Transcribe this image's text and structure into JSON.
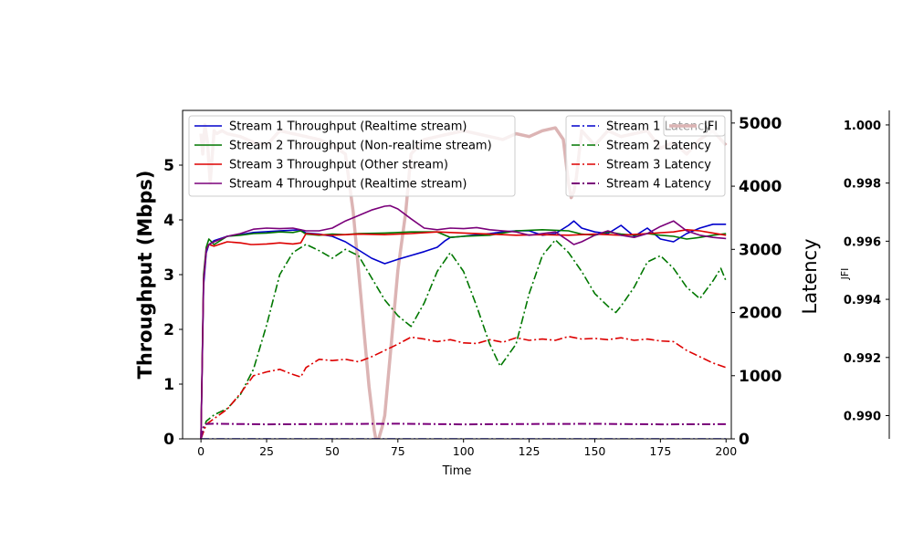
{
  "chart_data": {
    "type": "line",
    "xlabel": "Time",
    "xlim": [
      -7,
      202
    ],
    "xticks": [
      0,
      25,
      50,
      75,
      100,
      125,
      150,
      175,
      200
    ],
    "axes": {
      "throughput": {
        "label": "Throughput (Mbps)",
        "ylim": [
          0,
          6.0
        ],
        "ticks": [
          0,
          1,
          2,
          3,
          4,
          5
        ]
      },
      "latency": {
        "label": "Latency",
        "ylim": [
          0,
          5200
        ],
        "ticks": [
          0,
          1000,
          2000,
          3000,
          4000,
          5000
        ]
      },
      "jfi": {
        "label": "JFI",
        "ylim": [
          0.9892,
          1.0005
        ],
        "ticks": [
          "0.990",
          "0.992",
          "0.994",
          "0.996",
          "0.998",
          "1.000"
        ]
      }
    },
    "legends": {
      "throughput": {
        "placement": "top-left",
        "entries": [
          "Stream 1 Throughput (Realtime stream)",
          "Stream 2 Throughput (Non-realtime stream)",
          "Stream 3 Throughput (Other stream)",
          "Stream 4 Throughput (Realtime stream)"
        ]
      },
      "latency": {
        "placement": "top-right",
        "entries": [
          "Stream 1 Latency",
          "Stream 2 Latency",
          "Stream 3 Latency",
          "Stream 4 Latency"
        ]
      },
      "jfi": {
        "placement": "top-right",
        "entries": [
          "JFI"
        ]
      }
    },
    "series": [
      {
        "name": "Stream 1 Throughput (Realtime stream)",
        "axis": "throughput",
        "color": "#0000cc",
        "style": "solid",
        "width": 1.6,
        "x": [
          0,
          1,
          2,
          3,
          5,
          10,
          15,
          20,
          30,
          38,
          40,
          45,
          50,
          55,
          60,
          65,
          70,
          75,
          80,
          85,
          90,
          93,
          95,
          100,
          105,
          110,
          115,
          120,
          125,
          130,
          135,
          140,
          142,
          145,
          150,
          155,
          160,
          165,
          170,
          175,
          180,
          185,
          190,
          195,
          200
        ],
        "y": [
          0,
          2.8,
          3.4,
          3.55,
          3.62,
          3.7,
          3.73,
          3.77,
          3.8,
          3.82,
          3.76,
          3.74,
          3.7,
          3.6,
          3.45,
          3.3,
          3.2,
          3.28,
          3.35,
          3.42,
          3.5,
          3.62,
          3.68,
          3.7,
          3.73,
          3.75,
          3.78,
          3.8,
          3.8,
          3.72,
          3.75,
          3.9,
          3.98,
          3.85,
          3.78,
          3.75,
          3.9,
          3.7,
          3.85,
          3.65,
          3.6,
          3.75,
          3.85,
          3.92,
          3.92
        ]
      },
      {
        "name": "Stream 2 Throughput (Non-realtime stream)",
        "axis": "throughput",
        "color": "#007700",
        "style": "solid",
        "width": 1.6,
        "x": [
          0,
          1,
          2,
          3,
          5,
          10,
          15,
          20,
          25,
          30,
          35,
          38,
          40,
          45,
          50,
          55,
          60,
          70,
          80,
          90,
          95,
          100,
          110,
          120,
          130,
          140,
          145,
          150,
          155,
          160,
          165,
          170,
          175,
          180,
          185,
          190,
          195,
          200
        ],
        "y": [
          0,
          3.0,
          3.5,
          3.65,
          3.55,
          3.7,
          3.72,
          3.75,
          3.76,
          3.78,
          3.77,
          3.8,
          3.74,
          3.72,
          3.74,
          3.73,
          3.75,
          3.76,
          3.78,
          3.78,
          3.68,
          3.7,
          3.72,
          3.8,
          3.82,
          3.8,
          3.74,
          3.72,
          3.78,
          3.74,
          3.72,
          3.75,
          3.72,
          3.7,
          3.65,
          3.68,
          3.72,
          3.75
        ]
      },
      {
        "name": "Stream 3 Throughput (Other stream)",
        "axis": "throughput",
        "color": "#dd0000",
        "style": "solid",
        "width": 1.6,
        "x": [
          0,
          1,
          2,
          3,
          5,
          10,
          15,
          19,
          20,
          25,
          30,
          35,
          38,
          40,
          45,
          50,
          60,
          70,
          80,
          90,
          100,
          110,
          120,
          130,
          140,
          150,
          160,
          170,
          180,
          185,
          190,
          195,
          200
        ],
        "y": [
          0,
          2.9,
          3.45,
          3.55,
          3.52,
          3.6,
          3.58,
          3.55,
          3.55,
          3.56,
          3.58,
          3.56,
          3.58,
          3.75,
          3.73,
          3.72,
          3.74,
          3.73,
          3.75,
          3.78,
          3.76,
          3.74,
          3.72,
          3.73,
          3.72,
          3.74,
          3.72,
          3.75,
          3.78,
          3.82,
          3.8,
          3.76,
          3.72
        ]
      },
      {
        "name": "Stream 4 Throughput (Realtime stream)",
        "axis": "throughput",
        "color": "#7a007a",
        "style": "solid",
        "width": 1.6,
        "x": [
          0,
          1,
          2,
          3,
          5,
          10,
          15,
          20,
          25,
          30,
          35,
          40,
          45,
          50,
          55,
          60,
          65,
          70,
          72,
          75,
          80,
          85,
          90,
          95,
          100,
          105,
          110,
          115,
          120,
          125,
          130,
          135,
          140,
          142,
          145,
          150,
          155,
          160,
          165,
          170,
          175,
          180,
          185,
          190,
          195,
          200
        ],
        "y": [
          0,
          2.9,
          3.45,
          3.55,
          3.6,
          3.7,
          3.75,
          3.83,
          3.85,
          3.84,
          3.85,
          3.8,
          3.8,
          3.85,
          3.98,
          4.08,
          4.18,
          4.25,
          4.26,
          4.2,
          4.02,
          3.85,
          3.82,
          3.85,
          3.84,
          3.86,
          3.82,
          3.8,
          3.78,
          3.72,
          3.75,
          3.78,
          3.62,
          3.55,
          3.6,
          3.72,
          3.8,
          3.72,
          3.68,
          3.75,
          3.88,
          3.98,
          3.8,
          3.72,
          3.68,
          3.66
        ]
      },
      {
        "name": "Stream 1 Latency",
        "axis": "latency",
        "color": "#0000cc",
        "style": "dashdot",
        "width": 1.6,
        "x": [
          0,
          200
        ],
        "y": [
          0,
          0
        ]
      },
      {
        "name": "Stream 2 Latency",
        "axis": "latency",
        "color": "#007700",
        "style": "dashdot",
        "width": 1.6,
        "x": [
          0,
          2,
          5,
          10,
          15,
          20,
          25,
          30,
          35,
          40,
          45,
          50,
          55,
          60,
          65,
          70,
          75,
          80,
          85,
          90,
          95,
          100,
          105,
          110,
          114,
          120,
          125,
          130,
          135,
          140,
          145,
          150,
          155,
          158,
          160,
          165,
          170,
          175,
          180,
          185,
          190,
          195,
          198,
          200
        ],
        "y": [
          0,
          280,
          380,
          480,
          700,
          1100,
          1800,
          2600,
          2950,
          3080,
          2980,
          2860,
          3000,
          2900,
          2550,
          2200,
          1950,
          1780,
          2150,
          2650,
          2950,
          2650,
          2100,
          1500,
          1150,
          1500,
          2300,
          2900,
          3150,
          2950,
          2650,
          2300,
          2100,
          2000,
          2100,
          2400,
          2800,
          2900,
          2700,
          2400,
          2220,
          2500,
          2700,
          2500
        ]
      },
      {
        "name": "Stream 3 Latency",
        "axis": "latency",
        "color": "#dd0000",
        "style": "dashdot",
        "width": 1.6,
        "x": [
          0,
          2,
          5,
          10,
          15,
          20,
          25,
          30,
          35,
          38,
          40,
          45,
          50,
          55,
          60,
          65,
          70,
          75,
          80,
          85,
          90,
          95,
          100,
          105,
          110,
          115,
          120,
          125,
          130,
          135,
          140,
          145,
          150,
          155,
          160,
          165,
          170,
          175,
          180,
          185,
          190,
          195,
          200
        ],
        "y": [
          0,
          230,
          320,
          470,
          720,
          1000,
          1060,
          1100,
          1020,
          980,
          1130,
          1260,
          1240,
          1260,
          1220,
          1300,
          1400,
          1500,
          1610,
          1580,
          1540,
          1570,
          1520,
          1510,
          1570,
          1530,
          1600,
          1560,
          1580,
          1560,
          1620,
          1580,
          1590,
          1570,
          1600,
          1560,
          1580,
          1550,
          1540,
          1400,
          1300,
          1200,
          1130
        ]
      },
      {
        "name": "Stream 4 Latency",
        "axis": "latency",
        "color": "#7a007a",
        "style": "dashdot",
        "width": 2.0,
        "x": [
          0,
          1,
          2,
          5,
          25,
          50,
          75,
          100,
          125,
          150,
          175,
          200
        ],
        "y": [
          0,
          200,
          235,
          240,
          230,
          235,
          240,
          230,
          235,
          238,
          230,
          232
        ]
      },
      {
        "name": "JFI",
        "axis": "jfi",
        "color": "#dcb4b4",
        "style": "solid",
        "width": 3.5,
        "x": [
          0,
          0.7,
          1.5,
          2.5,
          3.5,
          5,
          6,
          8,
          10,
          15,
          20,
          25,
          30,
          35,
          40,
          45,
          50,
          55,
          58,
          60,
          62,
          64,
          66,
          67,
          68,
          69,
          70,
          72,
          75,
          78,
          80,
          85,
          90,
          95,
          100,
          105,
          110,
          115,
          120,
          125,
          130,
          135,
          138,
          140,
          141,
          142,
          143,
          145,
          150,
          155,
          160,
          165,
          170,
          175,
          180,
          185,
          190,
          195,
          200
        ],
        "y": [
          0.9997,
          0.999,
          1.0,
          0.9994,
          0.998,
          0.9998,
          0.9997,
          0.9998,
          0.9997,
          0.9996,
          0.9994,
          0.9993,
          0.9998,
          0.9997,
          0.9996,
          0.9995,
          0.9993,
          0.999,
          0.997,
          0.995,
          0.993,
          0.991,
          0.9895,
          0.989,
          0.9893,
          0.9896,
          0.99,
          0.992,
          0.995,
          0.997,
          0.999,
          0.9995,
          0.9996,
          0.9997,
          0.9998,
          0.9997,
          0.9996,
          0.9995,
          0.9997,
          0.9996,
          0.9998,
          0.9999,
          0.9995,
          0.998,
          0.9975,
          0.9977,
          0.9982,
          0.9998,
          0.9993,
          0.9998,
          0.9996,
          0.9997,
          0.9998,
          0.9992,
          0.9994,
          0.999,
          0.9995,
          0.9998,
          0.9993
        ]
      }
    ]
  }
}
